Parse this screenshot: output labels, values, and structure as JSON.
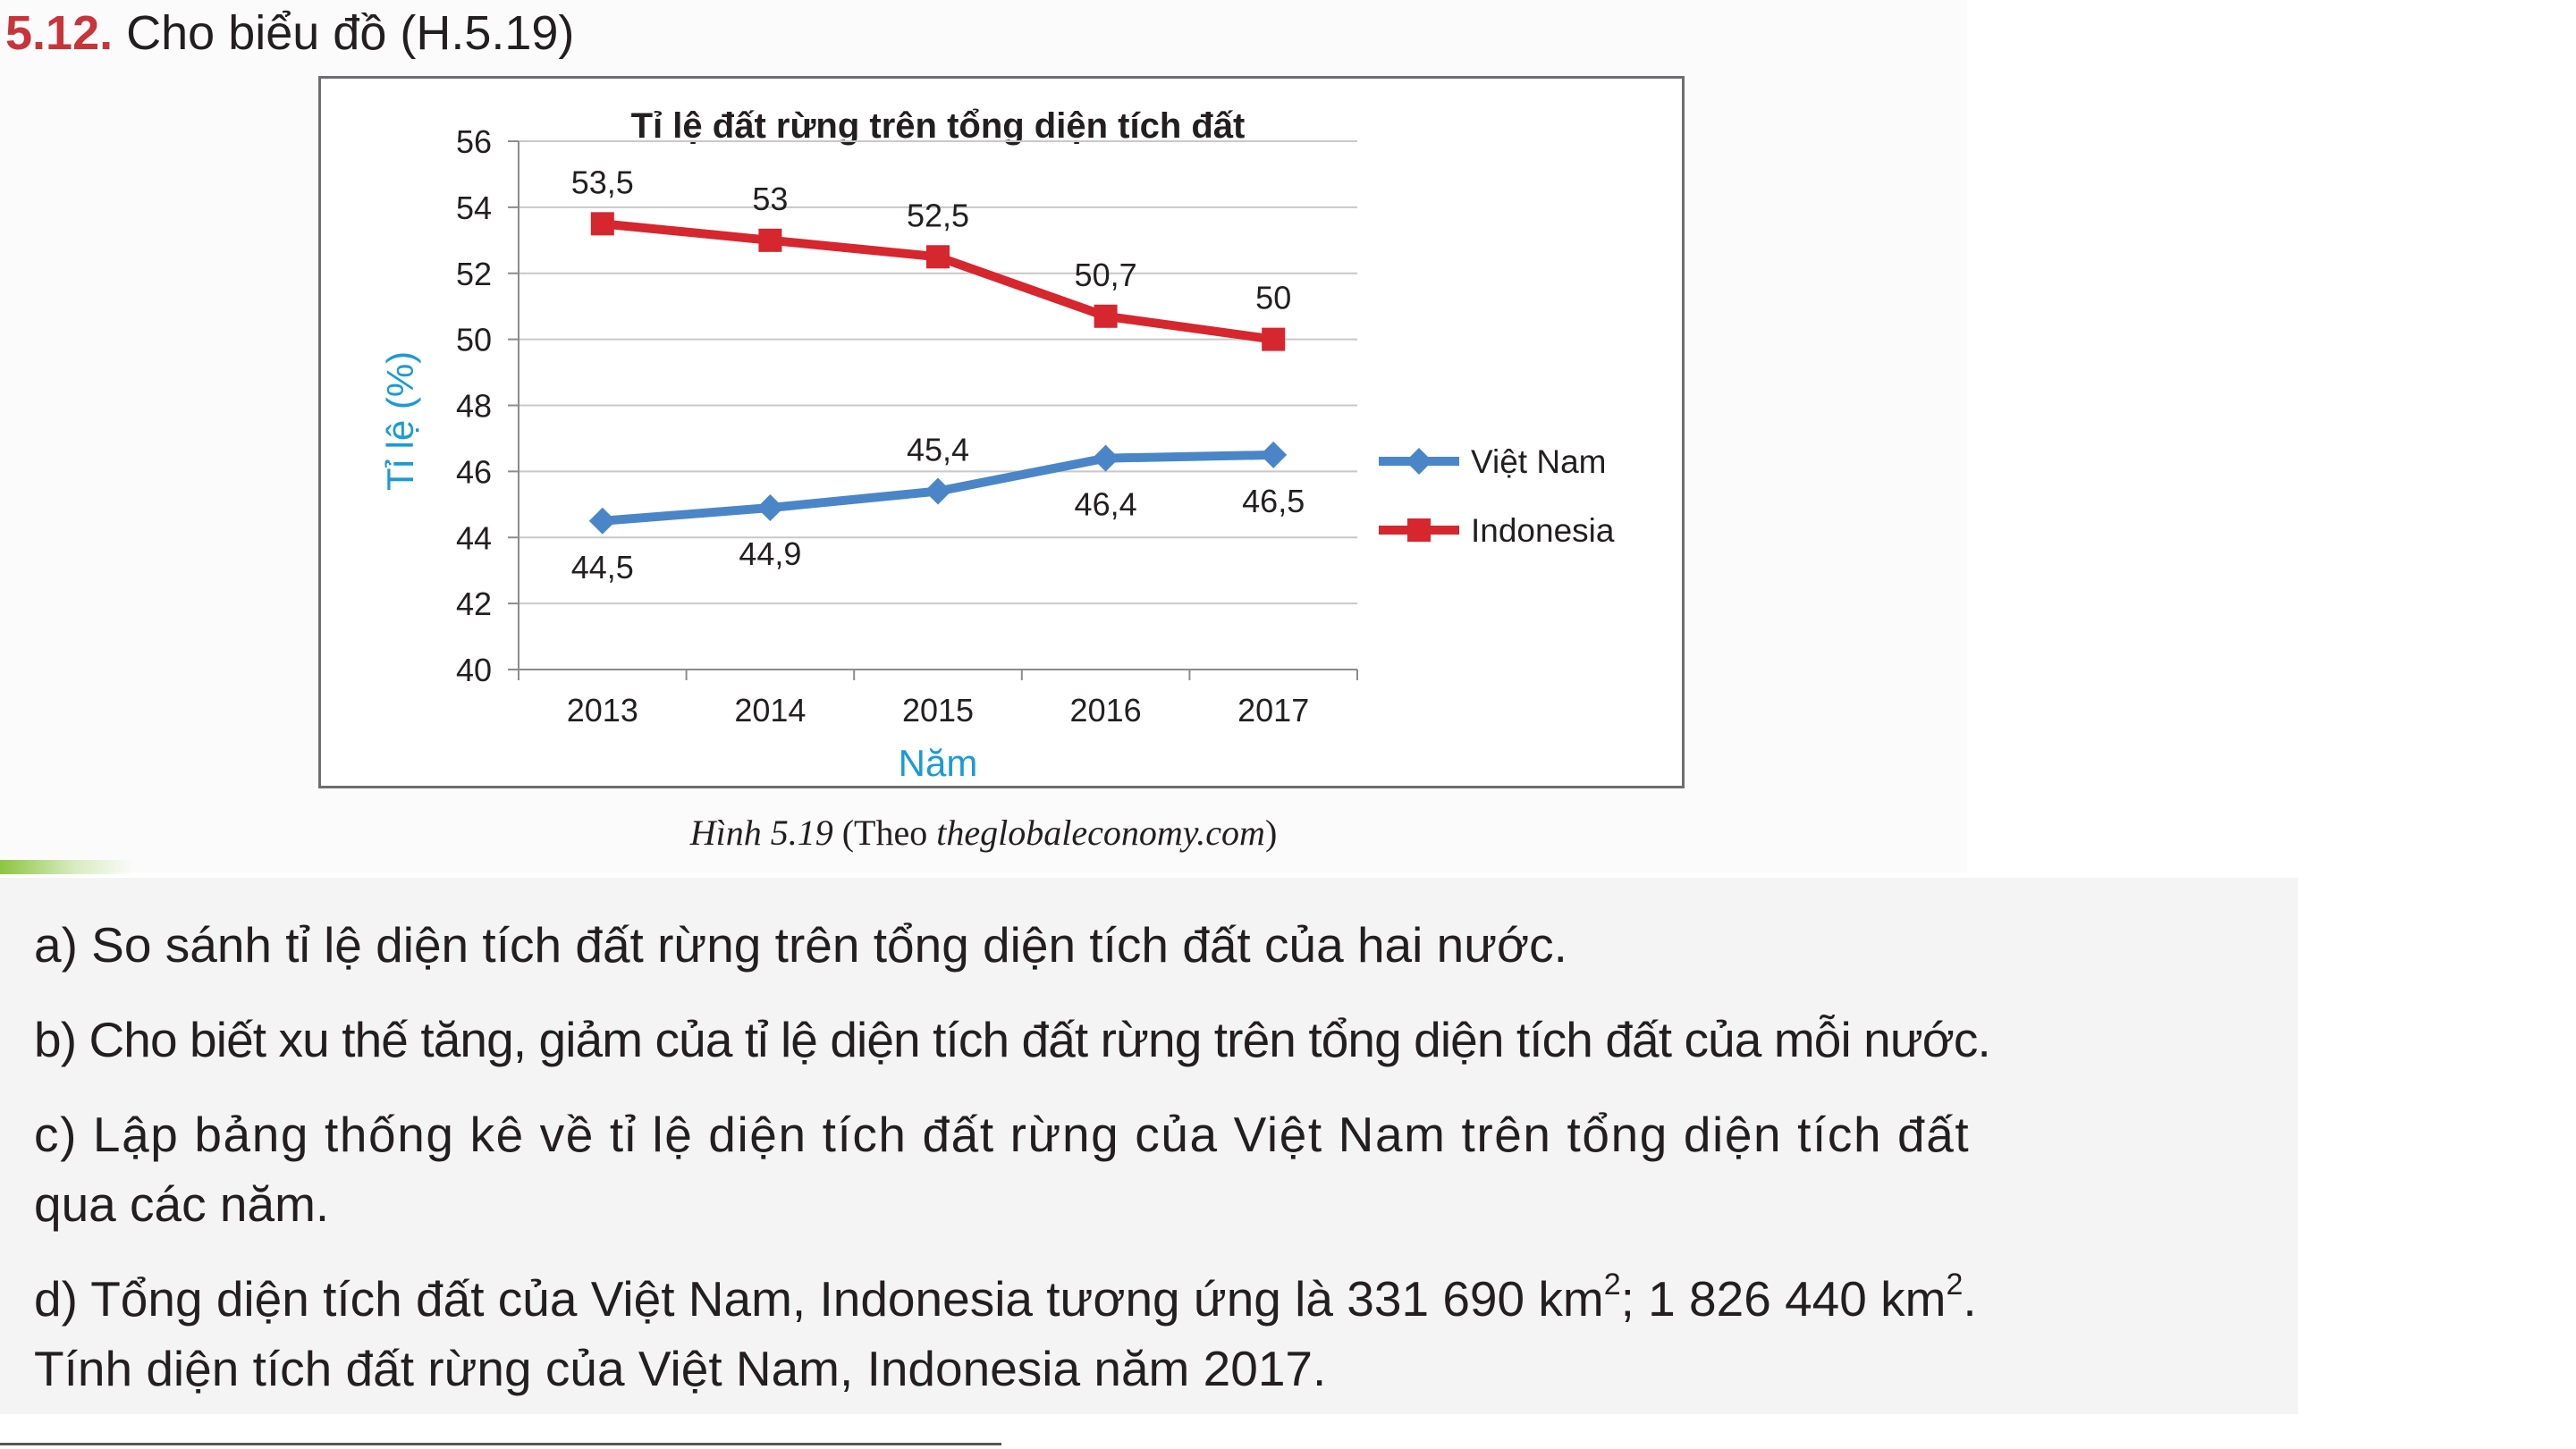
{
  "heading": {
    "number": "5.12.",
    "text": "Cho biểu đồ (H.5.19)"
  },
  "caption": {
    "figure": "Hình 5.19",
    "source_prefix": "(Theo ",
    "source_site": "theglobaleconomy.com",
    "source_suffix": ")"
  },
  "colors": {
    "vietnam": "#4a86c7",
    "indonesia": "#d6262e",
    "axis_title": "#1b9ad6",
    "heading_number": "#c7343c",
    "accent": "#8cc540"
  },
  "chart_data": {
    "type": "line",
    "title": "Tỉ lệ đất rừng trên tổng diện tích đất",
    "xlabel": "Năm",
    "ylabel": "Tỉ lệ (%)",
    "categories": [
      "2013",
      "2014",
      "2015",
      "2016",
      "2017"
    ],
    "ylim": [
      40,
      56
    ],
    "yticks": [
      "40",
      "42",
      "44",
      "46",
      "48",
      "50",
      "52",
      "54",
      "56"
    ],
    "grid": true,
    "legend_position": "right",
    "series": [
      {
        "name": "Việt Nam",
        "values": [
          44.5,
          44.9,
          45.4,
          46.4,
          46.5
        ],
        "labels": [
          "44,5",
          "44,9",
          "45,4",
          "46,4",
          "46,5"
        ],
        "marker": "diamond",
        "color": "#4a86c7"
      },
      {
        "name": "Indonesia",
        "values": [
          53.5,
          53,
          52.5,
          50.7,
          50
        ],
        "labels": [
          "53,5",
          "53",
          "52,5",
          "50,7",
          "50"
        ],
        "marker": "square",
        "color": "#d6262e"
      }
    ]
  },
  "questions": {
    "a": "a) So sánh tỉ lệ diện tích đất rừng trên tổng diện tích đất của hai nước.",
    "b": "b) Cho biết xu thế tăng, giảm của tỉ lệ diện tích đất rừng trên tổng diện tích đất của mỗi nước.",
    "c_line1": "c) Lập bảng thống kê về tỉ lệ diện tích đất rừng của Việt Nam trên tổng diện tích đất",
    "c_line2": "qua các năm.",
    "d_part1": "d) Tổng diện tích đất của Việt Nam, Indonesia tương ứng là 331 690 km",
    "d_sup1": "2",
    "d_part2": "; 1 826 440 km",
    "d_sup2": "2",
    "d_part3": ".",
    "d_line2": "Tính diện tích đất rừng của Việt Nam, Indonesia năm 2017."
  }
}
